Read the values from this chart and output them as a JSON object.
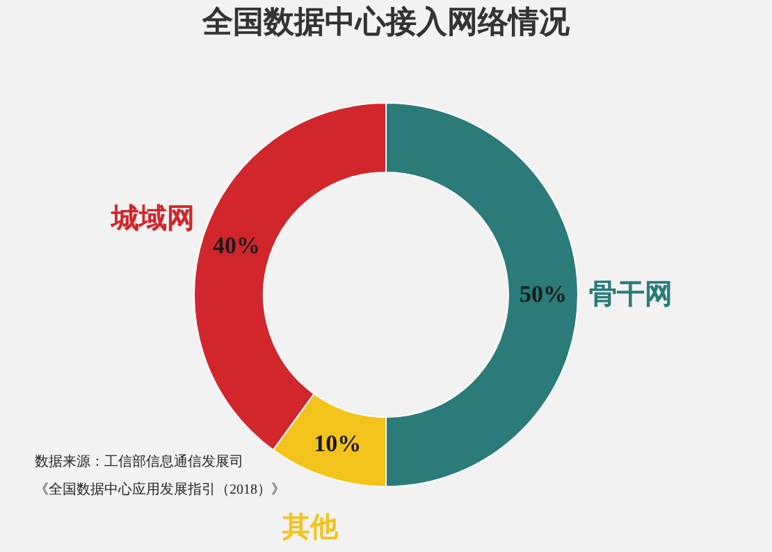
{
  "chart_data": {
    "type": "donut",
    "title": "全国数据中心接入网络情况",
    "categories": [
      "骨干网",
      "其他",
      "城域网"
    ],
    "values": [
      50,
      10,
      40
    ],
    "colors": [
      "#2b7b7b",
      "#f3c31c",
      "#d1262b"
    ],
    "value_labels": [
      "50%",
      "10%",
      "40%"
    ],
    "legend": false,
    "annotations": [
      "数据来源：工信部信息通信发展司",
      "《全国数据中心应用发展指引（2018）》"
    ]
  }
}
